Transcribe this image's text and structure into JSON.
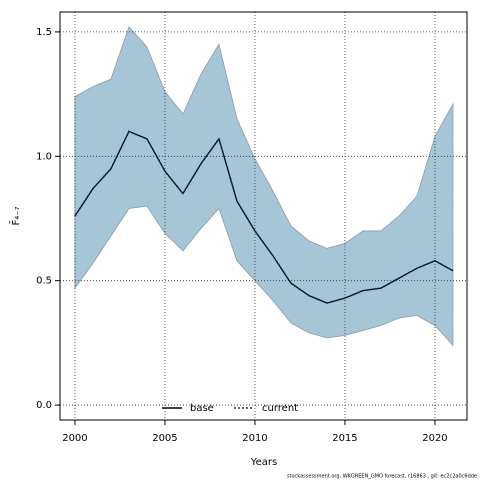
{
  "chart_data": {
    "type": "line",
    "xlabel": "Years",
    "ylabel": "F̄₄₋₇",
    "footer": "stockassessment.org, WKGREEN_GMO forecast, r16863 , git: ec2c2a0c6dde",
    "x": [
      2000,
      2001,
      2002,
      2003,
      2004,
      2005,
      2006,
      2007,
      2008,
      2009,
      2010,
      2011,
      2012,
      2013,
      2014,
      2015,
      2016,
      2017,
      2018,
      2019,
      2020,
      2021
    ],
    "band": {
      "color": "#a6c5d7",
      "upper": [
        1.24,
        1.28,
        1.31,
        1.52,
        1.44,
        1.26,
        1.17,
        1.33,
        1.45,
        1.15,
        0.99,
        0.86,
        0.72,
        0.66,
        0.63,
        0.65,
        0.7,
        0.7,
        0.76,
        0.84,
        1.08,
        1.21
      ],
      "lower": [
        0.47,
        0.57,
        0.68,
        0.79,
        0.8,
        0.69,
        0.62,
        0.71,
        0.79,
        0.58,
        0.5,
        0.42,
        0.33,
        0.29,
        0.27,
        0.28,
        0.3,
        0.32,
        0.35,
        0.36,
        0.32,
        0.24
      ]
    },
    "series": [
      {
        "name": "base",
        "color": "#000000",
        "dash": false,
        "values": [
          0.76,
          0.87,
          0.95,
          1.1,
          1.07,
          0.94,
          0.85,
          0.97,
          1.07,
          0.82,
          0.7,
          0.6,
          0.49,
          0.44,
          0.41,
          0.43,
          0.46,
          0.47,
          0.51,
          0.55,
          0.58,
          0.54
        ]
      },
      {
        "name": "current",
        "color": "#0b2a5c",
        "dash": true,
        "values": [
          0.76,
          0.87,
          0.95,
          1.1,
          1.07,
          0.94,
          0.85,
          0.97,
          1.07,
          0.82,
          0.7,
          0.6,
          0.49,
          0.44,
          0.41,
          0.43,
          0.46,
          0.47,
          0.51,
          0.55,
          0.58,
          0.54
        ]
      }
    ],
    "xlim": [
      1999.17,
      2021.78
    ],
    "ylim": [
      -0.06,
      1.58
    ],
    "xticks": [
      2000,
      2005,
      2010,
      2015,
      2020
    ],
    "yticks": [
      {
        "value": 0,
        "label": "0.0"
      },
      0.5,
      {
        "value": 1,
        "label": "1.0"
      },
      1.5
    ],
    "grid": true,
    "legend": "bottom"
  }
}
